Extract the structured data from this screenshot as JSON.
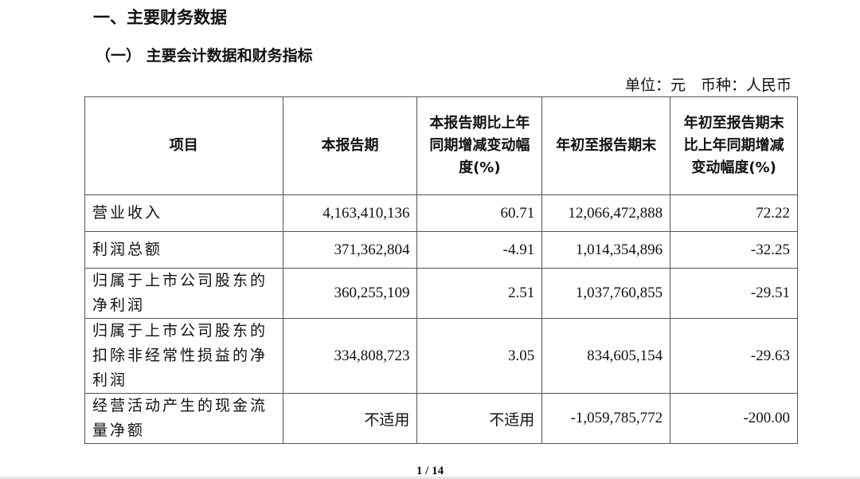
{
  "section_title": "一、主要财务数据",
  "subsection_title": "（一） 主要会计数据和财务指标",
  "unit_note": "单位：元　币种：人民币",
  "table": {
    "headers": [
      "项目",
      "本报告期",
      "本报告期比上年同期增减变动幅度(%)",
      "年初至报告期末",
      "年初至报告期末比上年同期增减变动幅度(%)"
    ],
    "rows": [
      [
        "营业收入",
        "4,163,410,136",
        "60.71",
        "12,066,472,888",
        "72.22"
      ],
      [
        "利润总额",
        "371,362,804",
        "-4.91",
        "1,014,354,896",
        "-32.25"
      ],
      [
        "归属于上市公司股东的净利润",
        "360,255,109",
        "2.51",
        "1,037,760,855",
        "-29.51"
      ],
      [
        "归属于上市公司股东的扣除非经常性损益的净利润",
        "334,808,723",
        "3.05",
        "834,605,154",
        "-29.63"
      ],
      [
        "经营活动产生的现金流量净额",
        "不适用",
        "不适用",
        "-1,059,785,772",
        "-200.00"
      ]
    ]
  },
  "page_indicator": "1 / 14"
}
